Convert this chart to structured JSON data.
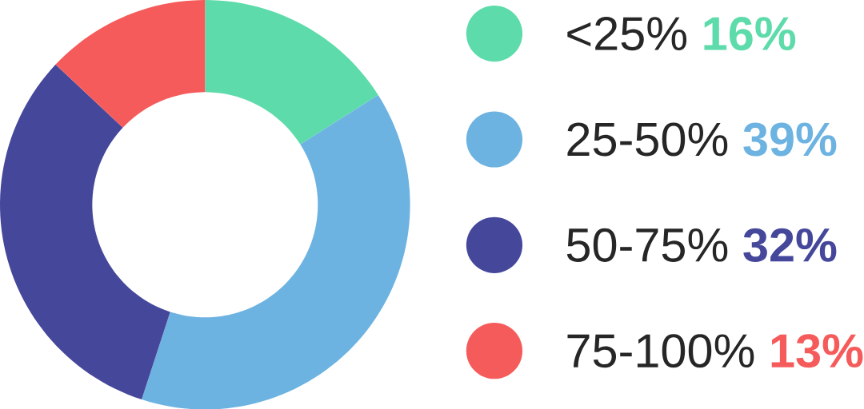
{
  "chart_data": {
    "type": "donut",
    "categories": [
      "<25%",
      "25-50%",
      "50-75%",
      "75-100%"
    ],
    "values": [
      16,
      39,
      32,
      13
    ],
    "value_labels": [
      "16%",
      "39%",
      "32%",
      "13%"
    ],
    "colors": [
      "#5ddbaa",
      "#6db3e2",
      "#45479b",
      "#f65b5b"
    ],
    "legend": "right"
  }
}
